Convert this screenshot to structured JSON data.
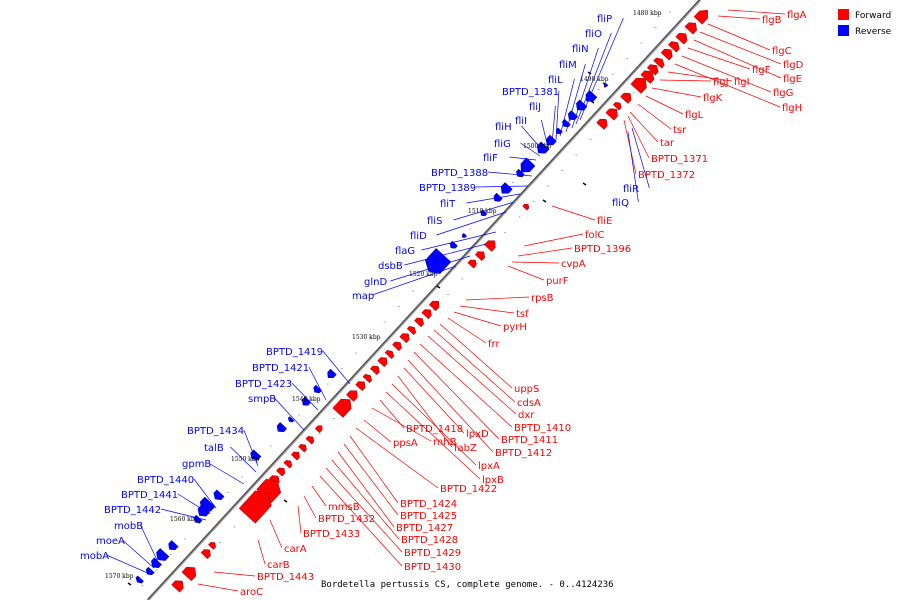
{
  "caption": "Bordetella pertussis CS, complete genome. - 0..4124236",
  "legend": [
    {
      "label": "Forward",
      "color": "#ff0000"
    },
    {
      "label": "Reverse",
      "color": "#0000ff"
    }
  ],
  "colors": {
    "forward": "#ff0000",
    "reverse": "#0000ff",
    "backbone": "#888888"
  },
  "ruler_labels": [
    "1480 kbp",
    "1490 kbp",
    "1500 kbp",
    "1510 kbp",
    "1520 kbp",
    "1530 kbp",
    "1540 kbp",
    "1550 kbp",
    "1560 kbp",
    "1570 kbp"
  ],
  "forward_genes": [
    "flgA",
    "flgB",
    "flgC",
    "flgD",
    "flgE",
    "flgF",
    "flgG",
    "flgH",
    "flgI",
    "flgJ",
    "flgK",
    "flgL",
    "tsr",
    "tar",
    "BPTD_1371",
    "BPTD_1372",
    "fliE",
    "folC",
    "BPTD_1396",
    "cvpA",
    "purF",
    "rpsB",
    "tsf",
    "pyrH",
    "frr",
    "uppS",
    "cdsA",
    "dxr",
    "BPTD_1410",
    "BPTD_1411",
    "BPTD_1412",
    "lpxD",
    "fabZ",
    "lpxA",
    "lpxB",
    "BPTD_1418",
    "rnhB",
    "ppsA",
    "BPTD_1422",
    "BPTD_1424",
    "BPTD_1425",
    "BPTD_1427",
    "BPTD_1428",
    "BPTD_1429",
    "BPTD_1430",
    "mmsB",
    "BPTD_1432",
    "BPTD_1433",
    "carA",
    "carB",
    "BPTD_1443",
    "aroC"
  ],
  "reverse_genes": [
    "fliP",
    "fliO",
    "fliN",
    "fliM",
    "fliL",
    "BPTD_1381",
    "fliJ",
    "fliI",
    "fliH",
    "fliG",
    "fliF",
    "BPTD_1388",
    "BPTD_1389",
    "fliT",
    "fliS",
    "fliD",
    "flaG",
    "dsbB",
    "glnD",
    "map",
    "fliR",
    "fliQ",
    "BPTD_1419",
    "BPTD_1421",
    "BPTD_1423",
    "smpB",
    "BPTD_1434",
    "talB",
    "gpmB",
    "BPTD_1440",
    "BPTD_1441",
    "BPTD_1442",
    "mobB",
    "moeA",
    "mobA"
  ]
}
